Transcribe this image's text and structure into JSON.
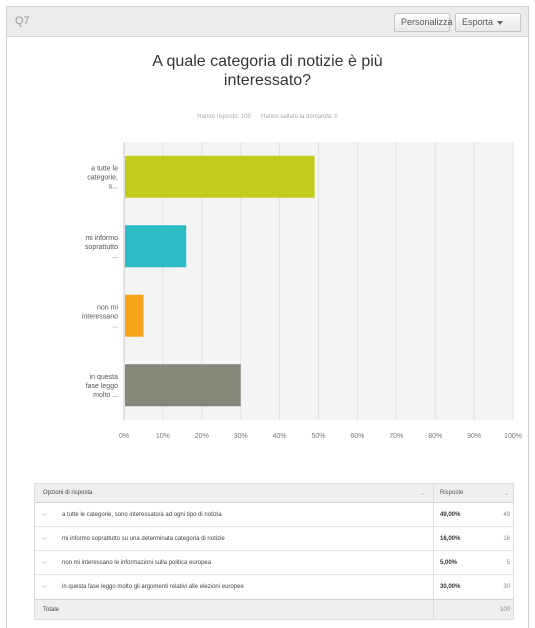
{
  "toolbar": {
    "question_code": "Q7",
    "personalize_label": "Personalizza",
    "export_label": "Esporta"
  },
  "chart_data": {
    "type": "bar",
    "orientation": "horizontal",
    "title": "A quale categoria di notizie è più interessato?",
    "subtitle_answered": "Hanno risposto: 100",
    "subtitle_skipped": "Hanno saltato la domanda: 0",
    "categories": [
      "a tutte le categorie, s...",
      "mi informo soprattutto ...",
      "non mi interessano ...",
      "in questa fase leggo molto ..."
    ],
    "values": [
      49,
      16,
      5,
      30
    ],
    "colors": [
      "#c3cc1d",
      "#2dbcc3",
      "#f5a31a",
      "#85857a"
    ],
    "xlim": [
      0,
      100
    ],
    "ticks": [
      0,
      10,
      20,
      30,
      40,
      50,
      60,
      70,
      80,
      90,
      100
    ],
    "tick_labels": [
      "0%",
      "10%",
      "20%",
      "30%",
      "40%",
      "50%",
      "60%",
      "70%",
      "80%",
      "90%",
      "100%"
    ],
    "grid": true
  },
  "table": {
    "header_option": "Opzioni di risposta",
    "header_responses": "Risposte",
    "rows": [
      {
        "text": "a tutte le categorie, sono interessato/a ad ogni tipo di notizia",
        "pct": "49,00%",
        "count": "49"
      },
      {
        "text": "mi informo soprattutto su una determinata categoria di notizie",
        "pct": "16,00%",
        "count": "16"
      },
      {
        "text": "non mi interessano le informazioni sulla politica europea",
        "pct": "5,00%",
        "count": "5"
      },
      {
        "text": "in questa fase leggo molto gli argomenti relativi alle elezioni europee",
        "pct": "30,00%",
        "count": "30"
      }
    ],
    "total_label": "Totale",
    "total_count": "100"
  }
}
